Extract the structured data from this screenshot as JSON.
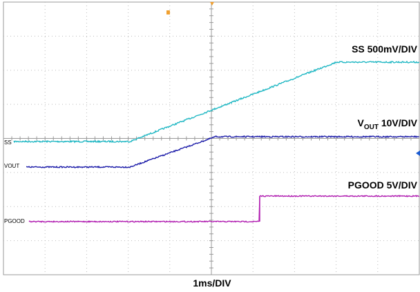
{
  "traces": [
    {
      "channel": "SS",
      "scale": "SS 500mV/DIV"
    },
    {
      "channel": "VOUT",
      "scale_main": "V",
      "scale_sub": "OUT",
      "scale_rest": " 10V/DIV"
    },
    {
      "channel": "PGOOD",
      "scale": "PGOOD 5V/DIV"
    }
  ],
  "timebase": "1ms/DIV"
}
